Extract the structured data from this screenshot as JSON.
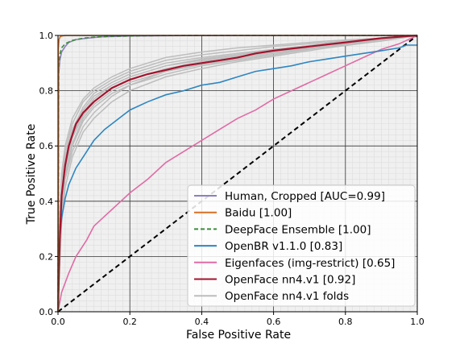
{
  "chart_data": {
    "type": "line",
    "xlabel": "False Positive Rate",
    "ylabel": "True Positive Rate",
    "xlim": [
      0.0,
      1.0
    ],
    "ylim": [
      0.0,
      1.0
    ],
    "xticks": [
      "0.0",
      "0.2",
      "0.4",
      "0.6",
      "0.8",
      "1.0"
    ],
    "yticks": [
      "0.0",
      "0.2",
      "0.4",
      "0.6",
      "0.8",
      "1.0"
    ],
    "grid": true,
    "legend_position": "bottom-right",
    "series": [
      {
        "name": "Human, Cropped [AUC=0.99]",
        "color": "#8c7fbf",
        "style": "solid",
        "x": [
          0,
          0.002,
          0.005,
          0.01,
          0.02,
          0.03,
          0.05,
          0.08,
          0.12,
          0.2,
          0.3,
          0.5,
          1.0
        ],
        "y": [
          0,
          0.86,
          0.91,
          0.94,
          0.96,
          0.975,
          0.985,
          0.99,
          0.995,
          0.998,
          0.999,
          1.0,
          1.0
        ]
      },
      {
        "name": "Baidu [1.00]",
        "color": "#d86f25",
        "style": "solid",
        "x": [
          0,
          0.001,
          0.003,
          0.006,
          0.01,
          0.02,
          0.05,
          1.0
        ],
        "y": [
          0,
          0.95,
          0.985,
          0.995,
          0.998,
          1.0,
          1.0,
          1.0
        ]
      },
      {
        "name": "DeepFace Ensemble [1.00]",
        "color": "#3d8a3d",
        "style": "dashed",
        "x": [
          0,
          0.002,
          0.005,
          0.01,
          0.02,
          0.04,
          0.07,
          0.1,
          0.15,
          0.25,
          0.4,
          1.0
        ],
        "y": [
          0,
          0.88,
          0.93,
          0.955,
          0.97,
          0.982,
          0.99,
          0.994,
          0.997,
          0.999,
          1.0,
          1.0
        ]
      },
      {
        "name": "OpenBR v1.1.0 [0.83]",
        "color": "#2e86c1",
        "style": "solid",
        "x": [
          0,
          0.005,
          0.01,
          0.02,
          0.03,
          0.05,
          0.07,
          0.1,
          0.13,
          0.17,
          0.2,
          0.25,
          0.3,
          0.35,
          0.4,
          0.45,
          0.5,
          0.55,
          0.6,
          0.65,
          0.7,
          0.75,
          0.8,
          0.85,
          0.9,
          0.95,
          0.97,
          1.0
        ],
        "y": [
          0,
          0.26,
          0.34,
          0.41,
          0.46,
          0.52,
          0.56,
          0.62,
          0.66,
          0.7,
          0.73,
          0.76,
          0.785,
          0.8,
          0.82,
          0.83,
          0.85,
          0.87,
          0.88,
          0.89,
          0.905,
          0.915,
          0.925,
          0.935,
          0.945,
          0.955,
          0.965,
          0.965
        ]
      },
      {
        "name": "Eigenfaces (img-restrict) [0.65]",
        "color": "#e06ba5",
        "style": "solid",
        "x": [
          0,
          0.01,
          0.03,
          0.05,
          0.08,
          0.1,
          0.15,
          0.2,
          0.25,
          0.3,
          0.35,
          0.4,
          0.45,
          0.5,
          0.55,
          0.6,
          0.65,
          0.7,
          0.75,
          0.8,
          0.85,
          0.9,
          0.95,
          1.0
        ],
        "y": [
          0,
          0.07,
          0.14,
          0.2,
          0.26,
          0.31,
          0.37,
          0.43,
          0.48,
          0.54,
          0.58,
          0.62,
          0.66,
          0.7,
          0.73,
          0.77,
          0.8,
          0.83,
          0.86,
          0.89,
          0.92,
          0.95,
          0.97,
          1.0
        ]
      },
      {
        "name": "OpenFace nn4.v1 [0.92]",
        "color": "#a3142e",
        "style": "solid",
        "x": [
          0,
          0.005,
          0.01,
          0.02,
          0.03,
          0.04,
          0.05,
          0.07,
          0.1,
          0.13,
          0.15,
          0.2,
          0.25,
          0.3,
          0.35,
          0.4,
          0.45,
          0.5,
          0.55,
          0.6,
          0.7,
          0.8,
          0.9,
          1.0
        ],
        "y": [
          0,
          0.26,
          0.42,
          0.53,
          0.6,
          0.64,
          0.68,
          0.72,
          0.76,
          0.79,
          0.81,
          0.84,
          0.86,
          0.875,
          0.89,
          0.9,
          0.91,
          0.92,
          0.935,
          0.945,
          0.96,
          0.975,
          0.99,
          1.0
        ]
      }
    ],
    "fold_series": {
      "name": "OpenFace nn4.v1 folds",
      "color": "#bdbdbd",
      "curves": [
        {
          "x": [
            0,
            0.005,
            0.01,
            0.02,
            0.04,
            0.07,
            0.1,
            0.15,
            0.2,
            0.3,
            0.4,
            0.5,
            0.6,
            0.75,
            0.9,
            1.0
          ],
          "y": [
            0,
            0.3,
            0.45,
            0.56,
            0.66,
            0.74,
            0.79,
            0.83,
            0.86,
            0.9,
            0.92,
            0.935,
            0.95,
            0.97,
            0.99,
            1.0
          ]
        },
        {
          "x": [
            0,
            0.005,
            0.01,
            0.02,
            0.04,
            0.07,
            0.1,
            0.15,
            0.2,
            0.3,
            0.4,
            0.5,
            0.6,
            0.75,
            0.9,
            1.0
          ],
          "y": [
            0,
            0.2,
            0.35,
            0.48,
            0.58,
            0.67,
            0.72,
            0.78,
            0.82,
            0.86,
            0.89,
            0.91,
            0.93,
            0.96,
            0.985,
            1.0
          ]
        },
        {
          "x": [
            0,
            0.005,
            0.01,
            0.02,
            0.04,
            0.07,
            0.1,
            0.15,
            0.2,
            0.3,
            0.4,
            0.5,
            0.6,
            0.75,
            0.9,
            1.0
          ],
          "y": [
            0,
            0.35,
            0.5,
            0.6,
            0.7,
            0.77,
            0.81,
            0.85,
            0.88,
            0.92,
            0.94,
            0.955,
            0.965,
            0.98,
            0.99,
            1.0
          ]
        },
        {
          "x": [
            0,
            0.005,
            0.01,
            0.02,
            0.04,
            0.07,
            0.1,
            0.15,
            0.2,
            0.3,
            0.4,
            0.5,
            0.6,
            0.75,
            0.9,
            1.0
          ],
          "y": [
            0,
            0.22,
            0.38,
            0.5,
            0.61,
            0.7,
            0.75,
            0.8,
            0.83,
            0.87,
            0.9,
            0.92,
            0.94,
            0.965,
            0.985,
            1.0
          ]
        },
        {
          "x": [
            0,
            0.005,
            0.01,
            0.02,
            0.04,
            0.07,
            0.1,
            0.15,
            0.2,
            0.3,
            0.4,
            0.5,
            0.6,
            0.75,
            0.9,
            1.0
          ],
          "y": [
            0,
            0.28,
            0.44,
            0.55,
            0.65,
            0.73,
            0.78,
            0.82,
            0.85,
            0.89,
            0.91,
            0.93,
            0.945,
            0.965,
            0.985,
            1.0
          ]
        },
        {
          "x": [
            0,
            0.005,
            0.01,
            0.02,
            0.04,
            0.07,
            0.1,
            0.15,
            0.2,
            0.3,
            0.4,
            0.5,
            0.6,
            0.75,
            0.9,
            1.0
          ],
          "y": [
            0,
            0.18,
            0.32,
            0.45,
            0.56,
            0.65,
            0.7,
            0.76,
            0.8,
            0.85,
            0.88,
            0.905,
            0.925,
            0.955,
            0.98,
            1.0
          ]
        },
        {
          "x": [
            0,
            0.005,
            0.01,
            0.02,
            0.04,
            0.07,
            0.1,
            0.15,
            0.2,
            0.3,
            0.4,
            0.5,
            0.6,
            0.75,
            0.9,
            1.0
          ],
          "y": [
            0,
            0.33,
            0.48,
            0.58,
            0.68,
            0.76,
            0.8,
            0.84,
            0.87,
            0.91,
            0.93,
            0.945,
            0.96,
            0.975,
            0.99,
            1.0
          ]
        },
        {
          "x": [
            0,
            0.005,
            0.01,
            0.02,
            0.04,
            0.07,
            0.1,
            0.15,
            0.2,
            0.3,
            0.4,
            0.5,
            0.6,
            0.75,
            0.9,
            1.0
          ],
          "y": [
            0,
            0.24,
            0.4,
            0.52,
            0.63,
            0.71,
            0.76,
            0.81,
            0.84,
            0.88,
            0.905,
            0.925,
            0.94,
            0.96,
            0.98,
            1.0
          ]
        },
        {
          "x": [
            0,
            0.005,
            0.01,
            0.02,
            0.04,
            0.07,
            0.1,
            0.15,
            0.2,
            0.3,
            0.4,
            0.5,
            0.6,
            0.75,
            0.9,
            1.0
          ],
          "y": [
            0,
            0.27,
            0.43,
            0.54,
            0.64,
            0.72,
            0.77,
            0.82,
            0.85,
            0.89,
            0.915,
            0.93,
            0.95,
            0.97,
            0.985,
            1.0
          ]
        },
        {
          "x": [
            0,
            0.005,
            0.01,
            0.02,
            0.04,
            0.07,
            0.1,
            0.15,
            0.2,
            0.3,
            0.4,
            0.5,
            0.6,
            0.75,
            0.9,
            1.0
          ],
          "y": [
            0,
            0.21,
            0.37,
            0.49,
            0.6,
            0.69,
            0.74,
            0.79,
            0.82,
            0.87,
            0.895,
            0.915,
            0.935,
            0.96,
            0.98,
            1.0
          ]
        }
      ]
    },
    "chance_line": {
      "color": "#000000",
      "style": "dashed",
      "x": [
        0,
        1
      ],
      "y": [
        0,
        1
      ]
    },
    "legend": [
      "Human, Cropped [AUC=0.99]",
      "Baidu [1.00]",
      "DeepFace Ensemble [1.00]",
      "OpenBR v1.1.0 [0.83]",
      "Eigenfaces (img-restrict) [0.65]",
      "OpenFace nn4.v1 [0.92]",
      "OpenFace nn4.v1 folds"
    ]
  }
}
